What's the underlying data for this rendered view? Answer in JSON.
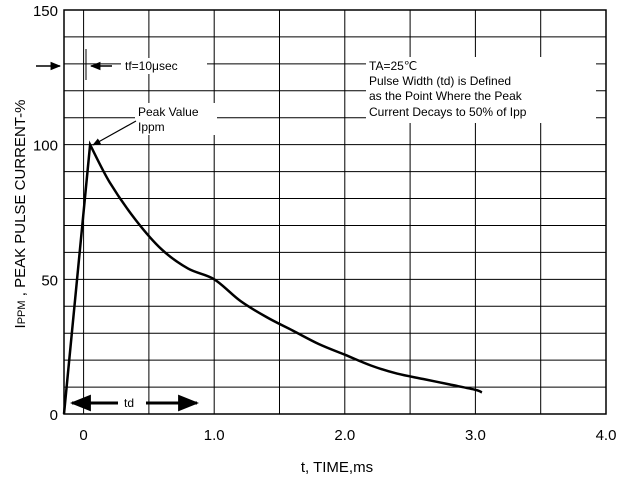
{
  "chart_data": {
    "type": "line",
    "xlabel": "t, TIME,ms",
    "ylabel_prefix": "I",
    "ylabel_sub": "PPM",
    "ylabel_rest": " , PEAK PULSE CURRENT-%",
    "xlim": [
      -0.15,
      4.0
    ],
    "ylim": [
      0,
      150
    ],
    "x_ticks": [
      {
        "value": 0,
        "label": "0"
      },
      {
        "value": 1,
        "label": "1.0"
      },
      {
        "value": 2,
        "label": "2.0"
      },
      {
        "value": 3,
        "label": "3.0"
      },
      {
        "value": 4,
        "label": "4.0"
      }
    ],
    "y_ticks": [
      {
        "value": 0,
        "label": "0"
      },
      {
        "value": 50,
        "label": "50"
      },
      {
        "value": 100,
        "label": "100"
      },
      {
        "value": 150,
        "label": "150"
      }
    ],
    "grid": true,
    "series": [
      {
        "x": [
          -0.15,
          0.05,
          0.2,
          0.4,
          0.6,
          0.8,
          1.0,
          1.2,
          1.4,
          1.6,
          1.8,
          2.0,
          2.2,
          2.4,
          2.6,
          2.8,
          3.0,
          3.05
        ],
        "y": [
          0,
          100,
          86,
          72,
          61,
          54,
          50,
          42,
          36,
          31,
          26,
          22,
          18,
          15,
          13,
          11,
          9,
          8
        ]
      }
    ],
    "annotations": {
      "tf": "tf=10μsec",
      "peak_line1": "Peak Value",
      "peak_line2": "Ippm",
      "box_line1": "TA=25℃",
      "box_line2": "Pulse Width (td) is Defined",
      "box_line3": "as the Point Where the Peak",
      "box_line4": "Current Decays to 50% of Ipp",
      "td": "td"
    }
  }
}
